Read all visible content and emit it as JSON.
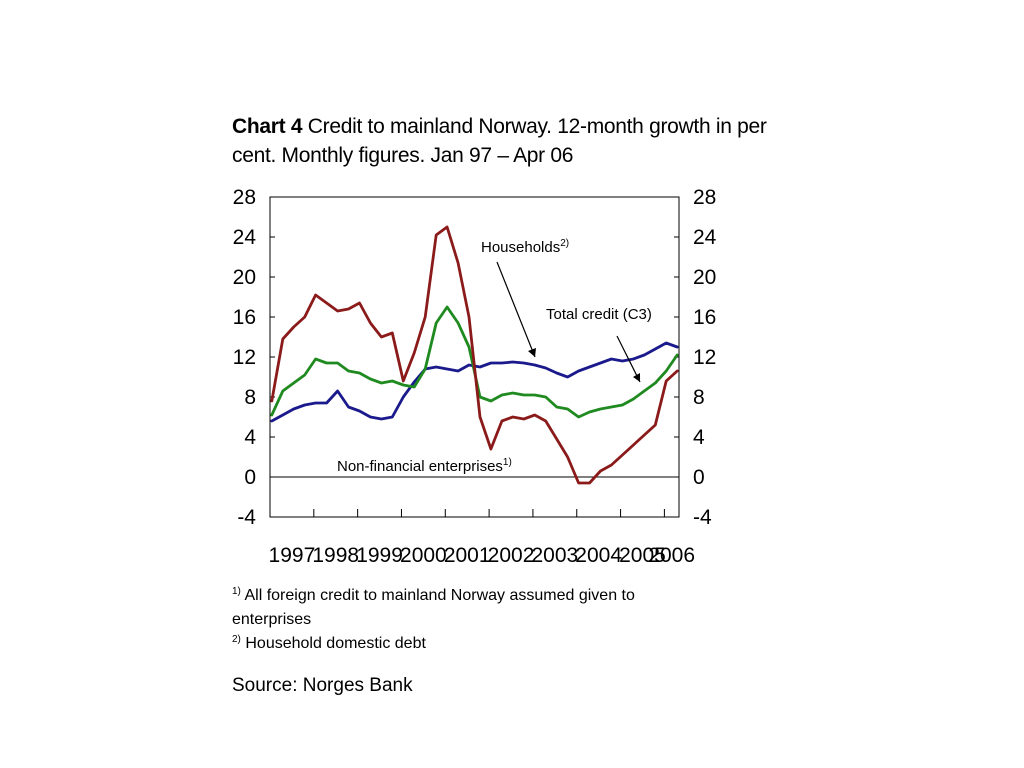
{
  "title": {
    "bold": "Chart 4",
    "text": " Credit to mainland Norway. 12-month growth in per cent. Monthly figures. Jan 97 – Apr 06"
  },
  "annotations": {
    "households": "Households",
    "households_sup": "2)",
    "total_credit": "Total credit (C3)",
    "non_financial": "Non-financial enterprises",
    "non_financial_sup": "1)"
  },
  "footnotes": [
    {
      "marker": "1)",
      "text": "All foreign credit to mainland Norway assumed given to enterprises"
    },
    {
      "marker": "2)",
      "text": "Household domestic debt"
    }
  ],
  "source": "Source: Norges Bank",
  "chart_data": {
    "type": "line",
    "x_labels": [
      "1997",
      "1998",
      "1999",
      "2000",
      "2001",
      "2002",
      "2003",
      "2004",
      "2005",
      "2006"
    ],
    "x_range": [
      "1997-01",
      "2006-04"
    ],
    "ylim": [
      -4,
      28
    ],
    "yticks": [
      28,
      24,
      20,
      16,
      12,
      8,
      4,
      0,
      -4
    ],
    "series": [
      {
        "name": "Households",
        "color": "#1a1a8c",
        "points": [
          [
            "1997-01",
            5.6
          ],
          [
            "1997-04",
            6.2
          ],
          [
            "1997-07",
            6.8
          ],
          [
            "1997-10",
            7.2
          ],
          [
            "1998-01",
            7.4
          ],
          [
            "1998-04",
            7.4
          ],
          [
            "1998-07",
            8.6
          ],
          [
            "1998-10",
            7.0
          ],
          [
            "1999-01",
            6.6
          ],
          [
            "1999-04",
            6.0
          ],
          [
            "1999-07",
            5.8
          ],
          [
            "1999-10",
            6.0
          ],
          [
            "2000-01",
            8.0
          ],
          [
            "2000-04",
            9.5
          ],
          [
            "2000-07",
            10.8
          ],
          [
            "2000-10",
            11.0
          ],
          [
            "2001-01",
            10.8
          ],
          [
            "2001-04",
            10.6
          ],
          [
            "2001-07",
            11.2
          ],
          [
            "2001-10",
            11.0
          ],
          [
            "2002-01",
            11.4
          ],
          [
            "2002-04",
            11.4
          ],
          [
            "2002-07",
            11.5
          ],
          [
            "2002-10",
            11.4
          ],
          [
            "2003-01",
            11.2
          ],
          [
            "2003-04",
            10.9
          ],
          [
            "2003-07",
            10.4
          ],
          [
            "2003-10",
            10.0
          ],
          [
            "2004-01",
            10.6
          ],
          [
            "2004-04",
            11.0
          ],
          [
            "2004-07",
            11.4
          ],
          [
            "2004-10",
            11.8
          ],
          [
            "2005-01",
            11.6
          ],
          [
            "2005-04",
            11.8
          ],
          [
            "2005-07",
            12.2
          ],
          [
            "2005-10",
            12.8
          ],
          [
            "2006-01",
            13.4
          ],
          [
            "2006-04",
            13.0
          ]
        ]
      },
      {
        "name": "Total credit (C3)",
        "color": "#1f8a1f",
        "points": [
          [
            "1997-01",
            6.2
          ],
          [
            "1997-04",
            8.6
          ],
          [
            "1997-07",
            9.4
          ],
          [
            "1997-10",
            10.2
          ],
          [
            "1998-01",
            11.8
          ],
          [
            "1998-04",
            11.4
          ],
          [
            "1998-07",
            11.4
          ],
          [
            "1998-10",
            10.6
          ],
          [
            "1999-01",
            10.4
          ],
          [
            "1999-04",
            9.8
          ],
          [
            "1999-07",
            9.4
          ],
          [
            "1999-10",
            9.6
          ],
          [
            "2000-01",
            9.2
          ],
          [
            "2000-04",
            9.0
          ],
          [
            "2000-07",
            10.8
          ],
          [
            "2000-10",
            15.4
          ],
          [
            "2001-01",
            17.0
          ],
          [
            "2001-04",
            15.4
          ],
          [
            "2001-07",
            13.0
          ],
          [
            "2001-10",
            8.0
          ],
          [
            "2002-01",
            7.6
          ],
          [
            "2002-04",
            8.2
          ],
          [
            "2002-07",
            8.4
          ],
          [
            "2002-10",
            8.2
          ],
          [
            "2003-01",
            8.2
          ],
          [
            "2003-04",
            8.0
          ],
          [
            "2003-07",
            7.0
          ],
          [
            "2003-10",
            6.8
          ],
          [
            "2004-01",
            6.0
          ],
          [
            "2004-04",
            6.5
          ],
          [
            "2004-07",
            6.8
          ],
          [
            "2004-10",
            7.0
          ],
          [
            "2005-01",
            7.2
          ],
          [
            "2005-04",
            7.8
          ],
          [
            "2005-07",
            8.6
          ],
          [
            "2005-10",
            9.4
          ],
          [
            "2006-01",
            10.6
          ],
          [
            "2006-04",
            12.2
          ]
        ]
      },
      {
        "name": "Non-financial enterprises",
        "color": "#8b1a1a",
        "points": [
          [
            "1997-01",
            7.6
          ],
          [
            "1997-04",
            13.8
          ],
          [
            "1997-07",
            15.0
          ],
          [
            "1997-10",
            16.0
          ],
          [
            "1998-01",
            18.2
          ],
          [
            "1998-04",
            17.4
          ],
          [
            "1998-07",
            16.6
          ],
          [
            "1998-10",
            16.8
          ],
          [
            "1999-01",
            17.4
          ],
          [
            "1999-04",
            15.4
          ],
          [
            "1999-07",
            14.0
          ],
          [
            "1999-10",
            14.4
          ],
          [
            "2000-01",
            9.6
          ],
          [
            "2000-04",
            12.4
          ],
          [
            "2000-07",
            16.0
          ],
          [
            "2000-10",
            24.2
          ],
          [
            "2001-01",
            25.0
          ],
          [
            "2001-04",
            21.4
          ],
          [
            "2001-07",
            16.0
          ],
          [
            "2001-10",
            6.0
          ],
          [
            "2002-01",
            2.8
          ],
          [
            "2002-04",
            5.6
          ],
          [
            "2002-07",
            6.0
          ],
          [
            "2002-10",
            5.8
          ],
          [
            "2003-01",
            6.2
          ],
          [
            "2003-04",
            5.6
          ],
          [
            "2003-07",
            3.8
          ],
          [
            "2003-10",
            2.0
          ],
          [
            "2004-01",
            -0.6
          ],
          [
            "2004-04",
            -0.6
          ],
          [
            "2004-07",
            0.6
          ],
          [
            "2004-10",
            1.2
          ],
          [
            "2005-01",
            2.2
          ],
          [
            "2005-04",
            3.2
          ],
          [
            "2005-07",
            4.2
          ],
          [
            "2005-10",
            5.2
          ],
          [
            "2006-01",
            9.6
          ],
          [
            "2006-04",
            10.6
          ]
        ]
      }
    ]
  }
}
